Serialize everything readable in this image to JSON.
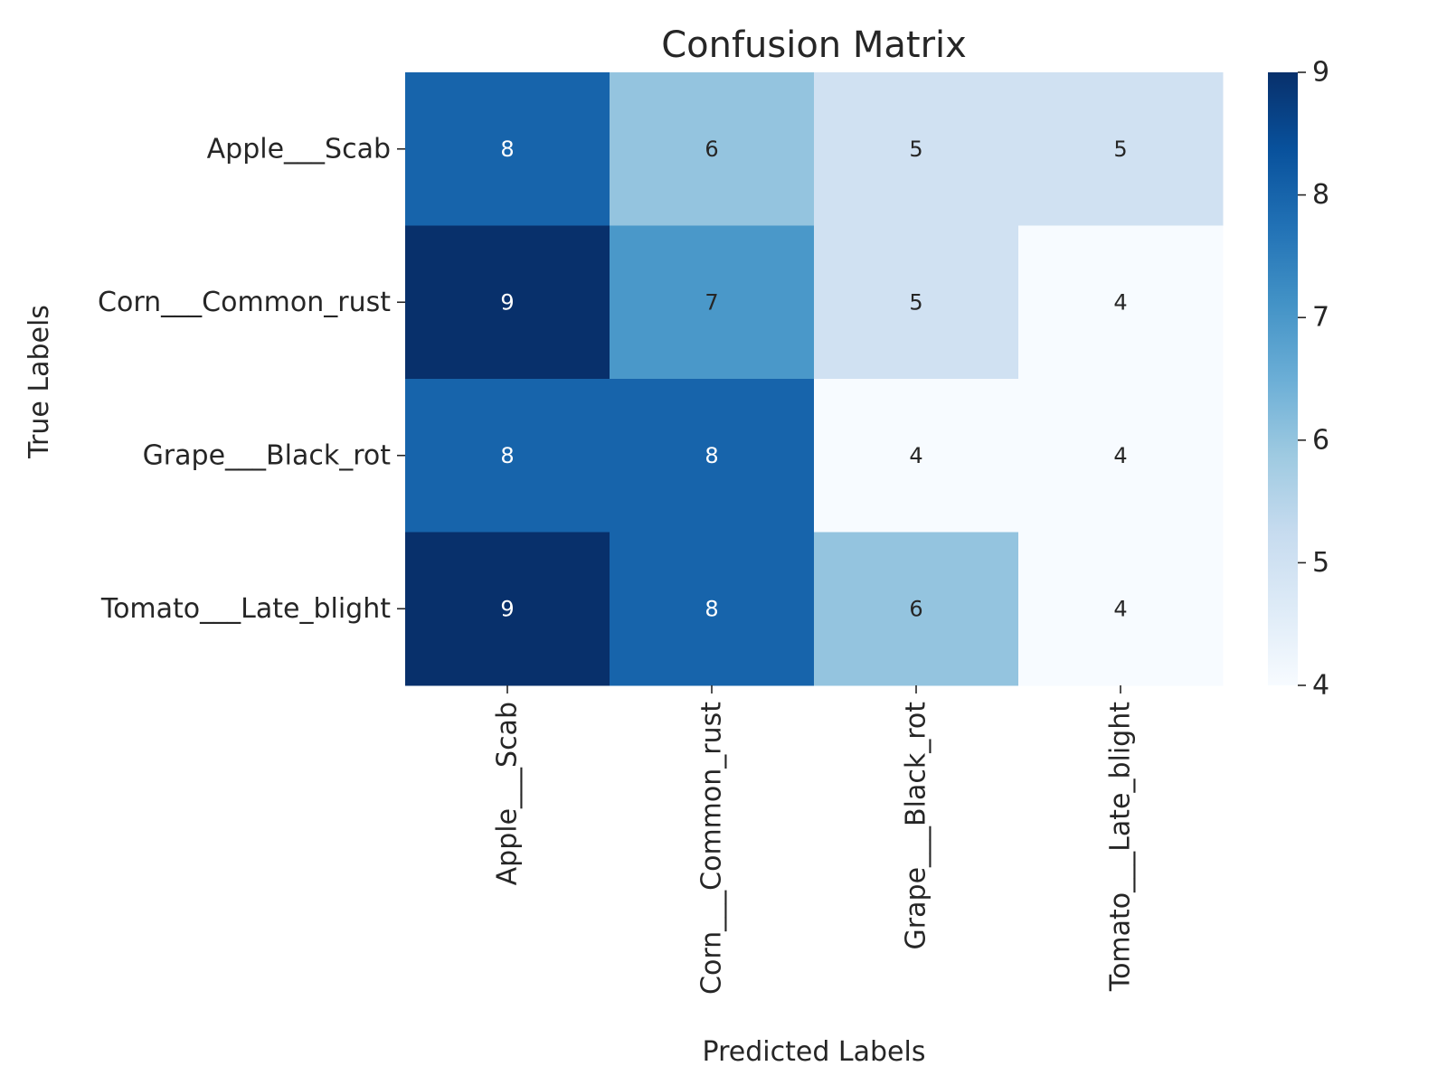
{
  "chart_data": {
    "type": "heatmap",
    "title": "Confusion Matrix",
    "xlabel": "Predicted Labels",
    "ylabel": "True Labels",
    "x_categories": [
      "Apple___Scab",
      "Corn___Common_rust",
      "Grape___Black_rot",
      "Tomato___Late_blight"
    ],
    "y_categories": [
      "Apple___Scab",
      "Corn___Common_rust",
      "Grape___Black_rot",
      "Tomato___Late_blight"
    ],
    "values": [
      [
        8,
        6,
        5,
        5
      ],
      [
        9,
        7,
        5,
        4
      ],
      [
        8,
        8,
        4,
        4
      ],
      [
        9,
        8,
        6,
        4
      ]
    ],
    "colorbar": {
      "min": 4,
      "max": 9,
      "ticks": [
        4,
        5,
        6,
        7,
        8,
        9
      ],
      "colormap": "Blues",
      "color_low": "#f7fbff",
      "color_high": "#08306b"
    },
    "annotations": true,
    "grid": false
  }
}
